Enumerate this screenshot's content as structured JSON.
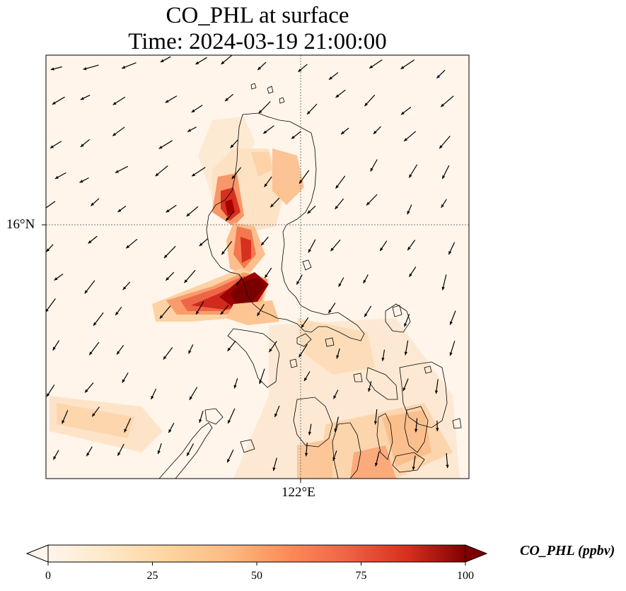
{
  "title": {
    "line1": "CO_PHL at surface",
    "line2": "Time: 2024-03-19 21:00:00"
  },
  "map": {
    "lat_label": "16°N",
    "lon_label": "122°E",
    "background_color": "#fff5eb",
    "coastline_color": "#000000",
    "gridline_style": "dotted"
  },
  "colorbar": {
    "label": "CO_PHL (ppbv)",
    "colormap": "OrRd",
    "stops": [
      "#fff5eb",
      "#fdd49e",
      "#fdbb84",
      "#fc8d59",
      "#ef6548",
      "#d7301f",
      "#b30000",
      "#7f0000"
    ],
    "ticks": [
      "0",
      "25",
      "50",
      "75",
      "100"
    ],
    "min": 0,
    "max": 100,
    "extend": "both"
  }
}
